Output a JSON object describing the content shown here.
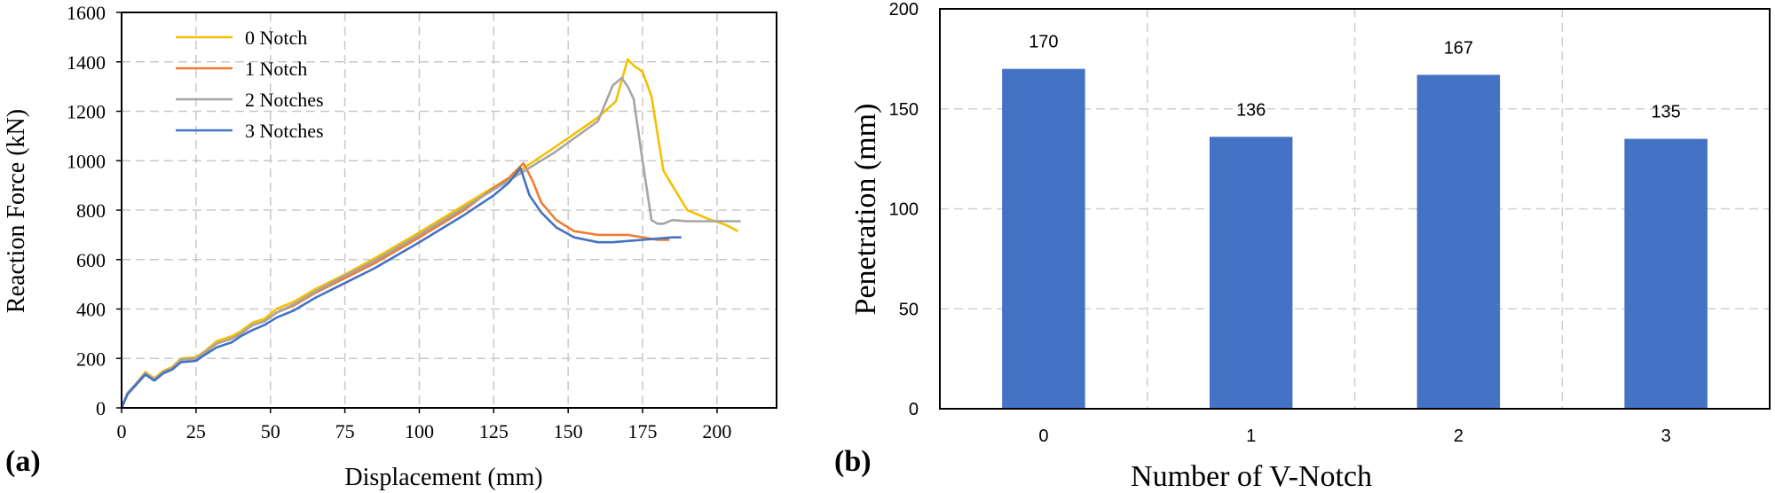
{
  "panels": {
    "a": "(a)",
    "b": "(b)"
  },
  "chart_data": [
    {
      "type": "line",
      "xlabel": "Displacement (mm)",
      "ylabel": "Reaction Force (kN)",
      "xlim": [
        0,
        220
      ],
      "ylim": [
        0,
        1600
      ],
      "xticks": [
        0,
        25,
        50,
        75,
        100,
        125,
        150,
        175,
        200
      ],
      "yticks": [
        0,
        200,
        400,
        600,
        800,
        1000,
        1200,
        1400,
        1600
      ],
      "grid": true,
      "legend_position": "top-left",
      "series": [
        {
          "name": "0 Notch",
          "color": "#f5c000",
          "points": [
            [
              0,
              0
            ],
            [
              2,
              60
            ],
            [
              5,
              100
            ],
            [
              8,
              145
            ],
            [
              11,
              120
            ],
            [
              14,
              150
            ],
            [
              17,
              165
            ],
            [
              20,
              200
            ],
            [
              25,
              205
            ],
            [
              28,
              230
            ],
            [
              32,
              270
            ],
            [
              37,
              290
            ],
            [
              40,
              310
            ],
            [
              44,
              345
            ],
            [
              48,
              360
            ],
            [
              52,
              400
            ],
            [
              58,
              430
            ],
            [
              65,
              480
            ],
            [
              75,
              540
            ],
            [
              85,
              605
            ],
            [
              100,
              710
            ],
            [
              115,
              820
            ],
            [
              130,
              930
            ],
            [
              145,
              1050
            ],
            [
              160,
              1175
            ],
            [
              166,
              1240
            ],
            [
              170,
              1410
            ],
            [
              172,
              1385
            ],
            [
              175,
              1360
            ],
            [
              178,
              1260
            ],
            [
              182,
              960
            ],
            [
              186,
              880
            ],
            [
              190,
              800
            ],
            [
              197,
              765
            ],
            [
              203,
              740
            ],
            [
              207,
              715
            ]
          ]
        },
        {
          "name": "1 Notch",
          "color": "#ee7d31",
          "points": [
            [
              0,
              0
            ],
            [
              2,
              60
            ],
            [
              5,
              100
            ],
            [
              8,
              140
            ],
            [
              11,
              115
            ],
            [
              14,
              145
            ],
            [
              17,
              160
            ],
            [
              20,
              195
            ],
            [
              25,
              200
            ],
            [
              28,
              225
            ],
            [
              32,
              260
            ],
            [
              37,
              280
            ],
            [
              40,
              300
            ],
            [
              44,
              335
            ],
            [
              48,
              350
            ],
            [
              52,
              385
            ],
            [
              58,
              415
            ],
            [
              65,
              465
            ],
            [
              75,
              525
            ],
            [
              85,
              585
            ],
            [
              100,
              690
            ],
            [
              115,
              800
            ],
            [
              125,
              890
            ],
            [
              130,
              930
            ],
            [
              135,
              990
            ],
            [
              138,
              920
            ],
            [
              141,
              830
            ],
            [
              146,
              760
            ],
            [
              152,
              715
            ],
            [
              160,
              700
            ],
            [
              165,
              700
            ],
            [
              170,
              700
            ],
            [
              175,
              690
            ],
            [
              180,
              680
            ],
            [
              184,
              680
            ]
          ]
        },
        {
          "name": "2 Notches",
          "color": "#a5a5a5",
          "points": [
            [
              0,
              0
            ],
            [
              2,
              60
            ],
            [
              5,
              100
            ],
            [
              8,
              140
            ],
            [
              11,
              115
            ],
            [
              14,
              145
            ],
            [
              17,
              160
            ],
            [
              20,
              195
            ],
            [
              25,
              200
            ],
            [
              28,
              225
            ],
            [
              32,
              260
            ],
            [
              37,
              280
            ],
            [
              40,
              300
            ],
            [
              44,
              335
            ],
            [
              48,
              350
            ],
            [
              52,
              385
            ],
            [
              58,
              420
            ],
            [
              65,
              470
            ],
            [
              75,
              535
            ],
            [
              85,
              595
            ],
            [
              100,
              700
            ],
            [
              115,
              810
            ],
            [
              130,
              920
            ],
            [
              145,
              1030
            ],
            [
              160,
              1160
            ],
            [
              165,
              1305
            ],
            [
              168,
              1335
            ],
            [
              170,
              1300
            ],
            [
              172,
              1250
            ],
            [
              175,
              1000
            ],
            [
              178,
              760
            ],
            [
              180,
              745
            ],
            [
              182,
              745
            ],
            [
              185,
              760
            ],
            [
              190,
              755
            ],
            [
              200,
              755
            ],
            [
              208,
              755
            ]
          ]
        },
        {
          "name": "3 Notches",
          "color": "#4472c4",
          "points": [
            [
              0,
              0
            ],
            [
              2,
              55
            ],
            [
              5,
              95
            ],
            [
              8,
              135
            ],
            [
              11,
              110
            ],
            [
              14,
              140
            ],
            [
              17,
              155
            ],
            [
              20,
              185
            ],
            [
              25,
              190
            ],
            [
              28,
              215
            ],
            [
              32,
              245
            ],
            [
              37,
              265
            ],
            [
              40,
              290
            ],
            [
              44,
              315
            ],
            [
              48,
              335
            ],
            [
              52,
              365
            ],
            [
              58,
              395
            ],
            [
              65,
              445
            ],
            [
              75,
              505
            ],
            [
              85,
              565
            ],
            [
              100,
              670
            ],
            [
              115,
              780
            ],
            [
              125,
              860
            ],
            [
              130,
              910
            ],
            [
              134,
              970
            ],
            [
              137,
              860
            ],
            [
              141,
              790
            ],
            [
              146,
              730
            ],
            [
              152,
              690
            ],
            [
              160,
              670
            ],
            [
              165,
              670
            ],
            [
              170,
              675
            ],
            [
              175,
              680
            ],
            [
              180,
              685
            ],
            [
              185,
              690
            ],
            [
              188,
              690
            ]
          ]
        }
      ]
    },
    {
      "type": "bar",
      "xlabel": "Number of V-Notch",
      "ylabel": "Penetration  (mm)",
      "categories": [
        "0",
        "1",
        "2",
        "3"
      ],
      "values": [
        170,
        136,
        167,
        135
      ],
      "data_labels": [
        "170",
        "136",
        "167",
        "135"
      ],
      "ylim": [
        0,
        200
      ],
      "yticks": [
        0,
        50,
        100,
        150,
        200
      ],
      "grid": true,
      "color": "#4472c4"
    }
  ]
}
